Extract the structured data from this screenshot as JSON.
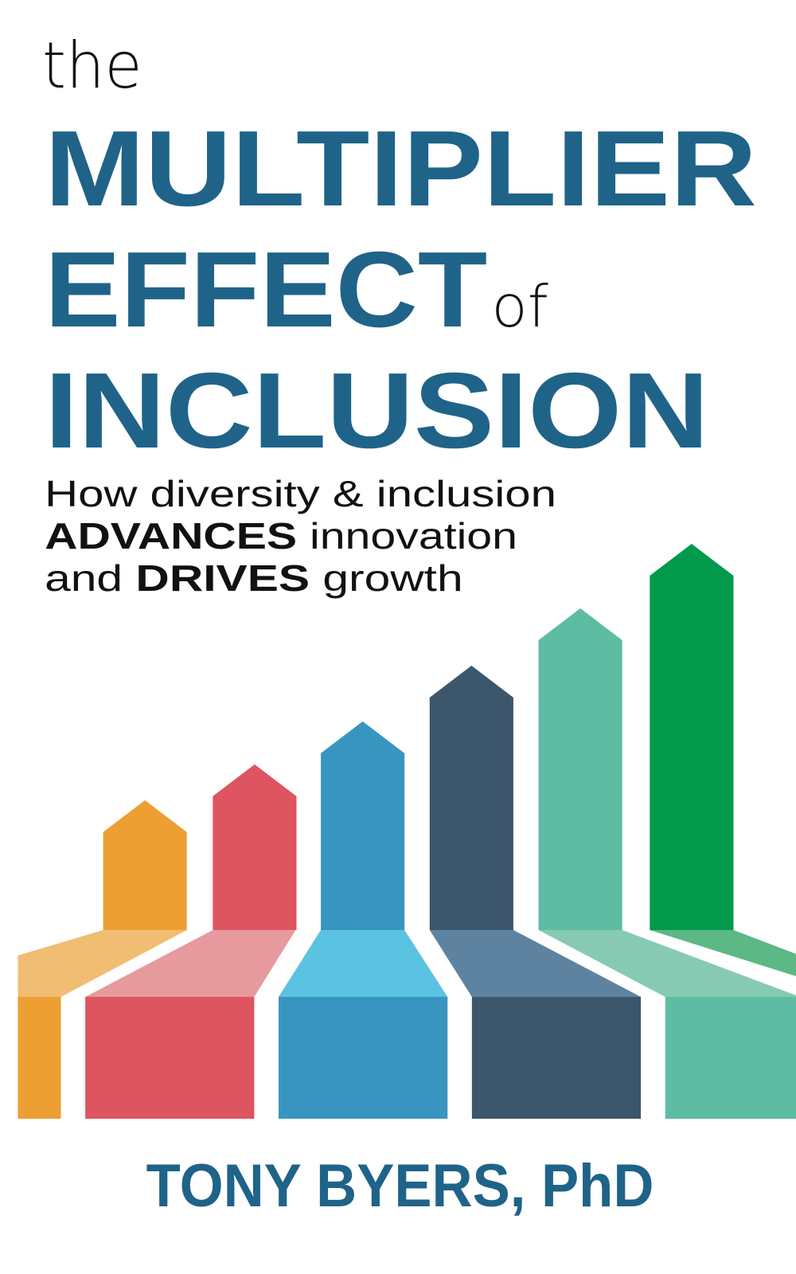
{
  "title": {
    "the": "the",
    "line1": "MULTIPLIER",
    "line2": "EFFECT",
    "of": "of",
    "line3": "INCLUSION"
  },
  "subtitle": {
    "line1": "How diversity & inclusion",
    "line2_bold": "ADVANCES",
    "line2_rest": " innovation",
    "line3_start": "and ",
    "line3_bold": "DRIVES",
    "line3_rest": " growth"
  },
  "author": "TONY BYERS, PhD",
  "colors": {
    "title_blue": "#1f6389",
    "text_black": "#111111",
    "arrows": [
      {
        "stem": "#ed9f34",
        "face": "#f1bd73"
      },
      {
        "stem": "#de5461",
        "face": "#e69a9e"
      },
      {
        "stem": "#3895c0",
        "face": "#5cc2e2"
      },
      {
        "stem": "#3c566b",
        "face": "#5d83a0"
      },
      {
        "stem": "#5ebca2",
        "face": "#86cab3"
      },
      {
        "stem": "#009a4a",
        "face": "#5cb884"
      }
    ]
  },
  "illustration": "rising-arrows-graphic"
}
